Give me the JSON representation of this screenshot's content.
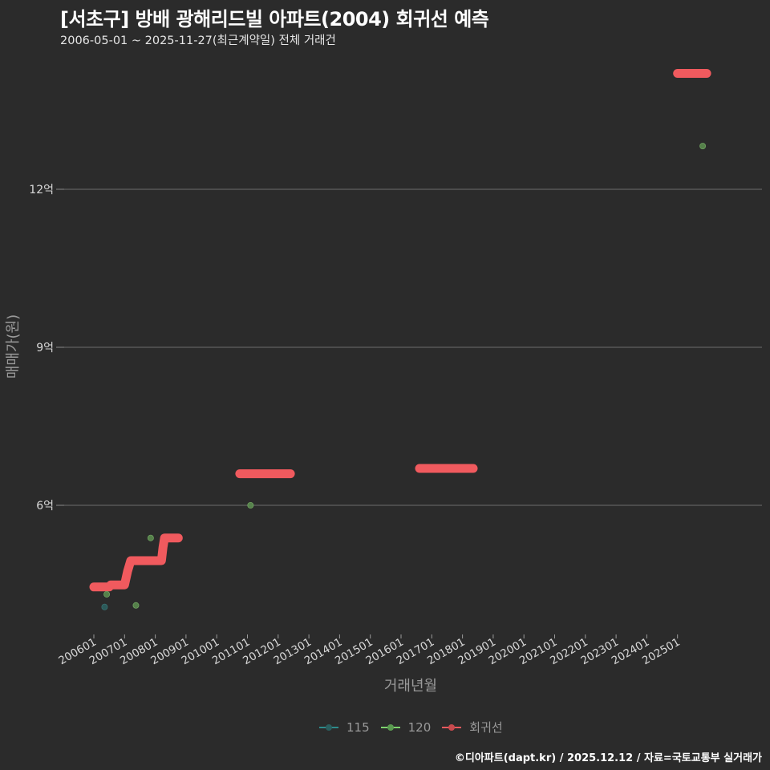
{
  "header": {
    "title": "[서초구] 방배 광해리드빌 아파트(2004) 회귀선 예측",
    "subtitle": "2006-05-01 ~ 2025-11-27(최근계약일) 전체 거래건"
  },
  "footer": {
    "credit": "©디아파트(dapt.kr) / 2025.12.12 / 자료=국토교통부 실거래가"
  },
  "legend": {
    "items": [
      {
        "label": "115",
        "color": "#2e8b8b"
      },
      {
        "label": "120",
        "color": "#7ed36e"
      },
      {
        "label": "회귀선",
        "color": "#f05a5e"
      }
    ]
  },
  "chart_data": {
    "type": "scatter",
    "title": "[서초구] 방배 광해리드빌 아파트(2004) 회귀선 예측",
    "subtitle": "2006-05-01 ~ 2025-11-27(최근계약일) 전체 거래건",
    "xlabel": "거래년월",
    "ylabel": "매매가(원)",
    "x_ticks": [
      "200601",
      "200701",
      "200801",
      "200901",
      "201001",
      "201101",
      "201201",
      "201301",
      "201401",
      "201501",
      "201601",
      "201701",
      "201801",
      "201901",
      "202001",
      "202101",
      "202201",
      "202301",
      "202401",
      "202501"
    ],
    "y_ticks": [
      {
        "value": 6,
        "label": "6억"
      },
      {
        "value": 9,
        "label": "9억"
      },
      {
        "value": 12,
        "label": "12억"
      }
    ],
    "ylim": [
      3.4,
      14.5
    ],
    "xlim": [
      2005.4,
      2026.4
    ],
    "grid": "horizontal",
    "legend_position": "bottom",
    "series": [
      {
        "name": "115",
        "color": "#2e8b8b",
        "points": [
          {
            "x": 2006.35,
            "y": 4.07
          }
        ]
      },
      {
        "name": "120",
        "color": "#7ed36e",
        "points": [
          {
            "x": 2006.42,
            "y": 4.31
          },
          {
            "x": 2007.37,
            "y": 4.1
          },
          {
            "x": 2007.85,
            "y": 5.38
          },
          {
            "x": 2011.1,
            "y": 6.0
          },
          {
            "x": 2025.82,
            "y": 12.82
          }
        ]
      },
      {
        "name": "회귀선",
        "color": "#f05a5e",
        "type": "step-line",
        "segments": [
          [
            [
              2006.0,
              4.45
            ],
            [
              2006.5,
              4.45
            ],
            [
              2006.55,
              4.49
            ],
            [
              2007.0,
              4.49
            ],
            [
              2007.1,
              4.75
            ],
            [
              2007.2,
              4.95
            ],
            [
              2008.2,
              4.95
            ],
            [
              2008.25,
              5.2
            ],
            [
              2008.3,
              5.38
            ],
            [
              2008.75,
              5.38
            ]
          ],
          [
            [
              2010.75,
              6.6
            ],
            [
              2012.4,
              6.6
            ]
          ],
          [
            [
              2016.6,
              6.7
            ],
            [
              2018.35,
              6.7
            ]
          ],
          [
            [
              2025.0,
              14.2
            ],
            [
              2025.95,
              14.2
            ]
          ]
        ]
      }
    ]
  }
}
